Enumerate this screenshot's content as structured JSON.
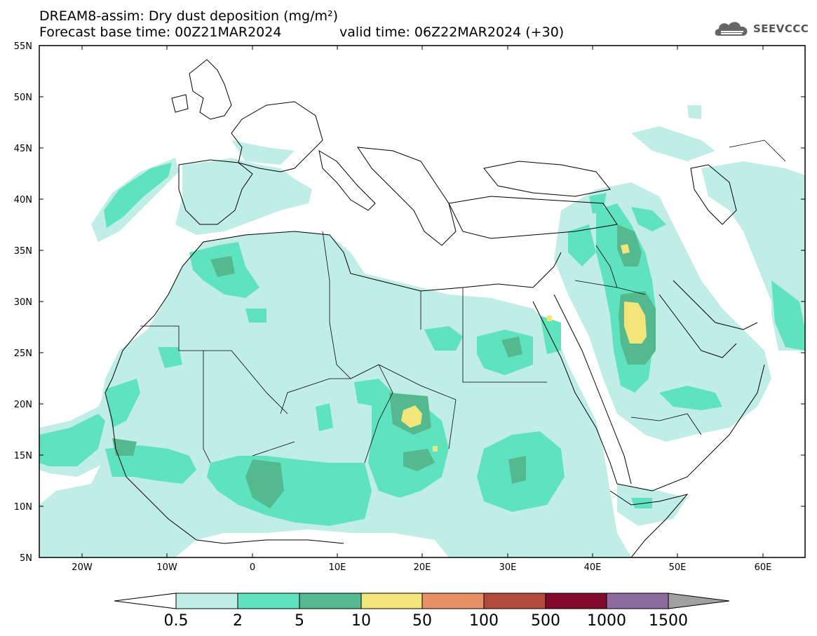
{
  "header": {
    "title": "DREAM8-assim: Dry dust deposition (mg/m²)",
    "base_time": "Forecast base time: 00Z21MAR2024",
    "valid_time": "valid time: 06Z22MAR2024 (+30)"
  },
  "logo": {
    "text": "SEEVCCC",
    "icon": "cloud-logo-icon"
  },
  "map": {
    "lat_ticks": [
      "55N",
      "50N",
      "45N",
      "40N",
      "35N",
      "30N",
      "25N",
      "20N",
      "15N",
      "10N",
      "5N"
    ],
    "lon_ticks": [
      "20W",
      "10W",
      "0",
      "10E",
      "20E",
      "30E",
      "40E",
      "50E",
      "60E"
    ],
    "lat_range": [
      5,
      55
    ],
    "lon_range": [
      -25,
      65
    ]
  },
  "legend": {
    "labels": [
      "0.5",
      "2",
      "5",
      "10",
      "50",
      "100",
      "500",
      "1000",
      "1500"
    ],
    "colors": [
      "#ffffff",
      "#c0eee6",
      "#5fe3be",
      "#55b98f",
      "#f2e57a",
      "#e89066",
      "#b24a3c",
      "#820a2a",
      "#8d6b9e",
      "#a0a0a0"
    ]
  }
}
